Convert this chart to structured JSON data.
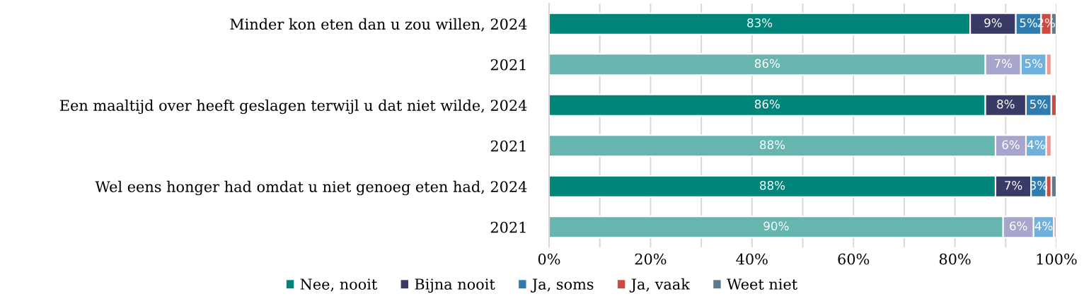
{
  "chart_data": {
    "type": "bar",
    "orientation": "horizontal",
    "stacked": true,
    "categories": [
      "Minder kon eten dan u zou willen, 2024",
      "2021",
      "Een maaltijd over heeft geslagen terwijl u dat niet wilde, 2024",
      "2021",
      "Wel eens honger had omdat u niet genoeg eten had, 2024",
      "2021"
    ],
    "series": [
      {
        "name": "Nee, nooit",
        "color": "#00857a",
        "colors": [
          "#00857a",
          "#66b5ae",
          "#00857a",
          "#66b5ae",
          "#00857a",
          "#66b5ae"
        ],
        "values": [
          83,
          86,
          86,
          88,
          88,
          89.5
        ],
        "value_labels": [
          "83%",
          "86%",
          "86%",
          "88%",
          "88%",
          "90%"
        ]
      },
      {
        "name": "Bijna nooit",
        "color": "#3a3a66",
        "colors": [
          "#3a3a66",
          "#a6a6cc",
          "#3a3a66",
          "#a6a6cc",
          "#3a3a66",
          "#a6a6cc"
        ],
        "values": [
          9,
          7,
          8,
          6,
          7,
          6
        ],
        "value_labels": [
          "9%",
          "7%",
          "8%",
          "6%",
          "7%",
          "6%"
        ]
      },
      {
        "name": "Ja, soms",
        "color": "#2e7bb0",
        "colors": [
          "#2e7bb0",
          "#6fb0dc",
          "#2e7bb0",
          "#6fb0dc",
          "#2e7bb0",
          "#6fb0dc"
        ],
        "values": [
          5,
          5,
          5,
          4,
          3,
          4
        ],
        "value_labels": [
          "5%",
          "5%",
          "5%",
          "4%",
          "3%",
          "4%"
        ]
      },
      {
        "name": "Ja, vaak",
        "color": "#cc4a42",
        "colors": [
          "#cc4a42",
          "#e89a94",
          "#cc4a42",
          "#e89a94",
          "#cc4a42",
          "#e89a94"
        ],
        "values": [
          2,
          1,
          1,
          1,
          1,
          0.5
        ],
        "value_labels": [
          "2%",
          null,
          null,
          null,
          null,
          null
        ]
      },
      {
        "name": "Weet niet",
        "color": "#5f7a8e",
        "colors": [
          "#5f7a8e",
          "#a0b0bf",
          "#5f7a8e",
          "#a0b0bf",
          "#5f7a8e",
          "#a0b0bf"
        ],
        "values": [
          1,
          null,
          null,
          null,
          1,
          null
        ],
        "value_labels": [
          null,
          null,
          null,
          null,
          null,
          null
        ]
      }
    ],
    "xlim": [
      0,
      100
    ],
    "xticks": [
      {
        "value": 0,
        "label": "0%"
      },
      {
        "value": 10,
        "label": null
      },
      {
        "value": 20,
        "label": "20%"
      },
      {
        "value": 30,
        "label": null
      },
      {
        "value": 40,
        "label": "40%"
      },
      {
        "value": 50,
        "label": null
      },
      {
        "value": 60,
        "label": "60%"
      },
      {
        "value": 70,
        "label": null
      },
      {
        "value": 80,
        "label": "80%"
      },
      {
        "value": 90,
        "label": null
      },
      {
        "value": 100,
        "label": "100%"
      }
    ],
    "grid": "x",
    "legend": "bottom"
  }
}
